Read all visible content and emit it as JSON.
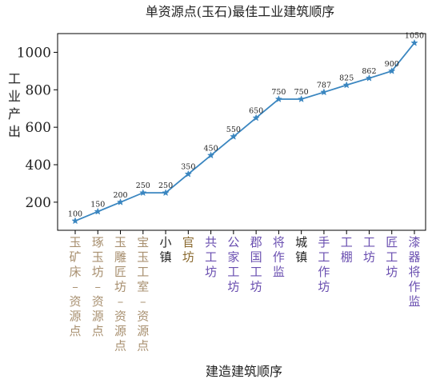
{
  "chart_data": {
    "type": "line",
    "title": "单资源点(玉石)最佳工业建筑顺序",
    "xlabel": "建造建筑顺序",
    "ylabel": "工业产出",
    "categories": [
      "玉矿床-资源点",
      "琢玉坊-资源点",
      "玉雕匠坊-资源点",
      "宝玉工室-资源点",
      "小镇",
      "官坊",
      "共工坊",
      "公家工坊",
      "郡国工坊",
      "将作监",
      "城镇",
      "手工作坊",
      "工棚",
      "工坊",
      "匠工坊",
      "漆器将作监"
    ],
    "category_colors": [
      "#a89070",
      "#a89070",
      "#a89070",
      "#a89070",
      "#222222",
      "#8a6a30",
      "#6a4fb0",
      "#6a4fb0",
      "#6a4fb0",
      "#6a4fb0",
      "#222222",
      "#6a4fb0",
      "#6a4fb0",
      "#6a4fb0",
      "#6a4fb0",
      "#6a4fb0"
    ],
    "series": [
      {
        "values": [
          100,
          150,
          200,
          250,
          250,
          350,
          450,
          550,
          650,
          750,
          750,
          787,
          825,
          862,
          900,
          1050
        ]
      }
    ],
    "data_labels": [
      "100",
      "150",
      "200",
      "250",
      "250",
      "350",
      "450",
      "550",
      "650",
      "750",
      "750",
      "787",
      "825",
      "862",
      "900",
      "1050"
    ],
    "yticks": [
      200,
      400,
      600,
      800,
      1000
    ],
    "ylim": [
      50,
      1100
    ],
    "line_color": "#3a86c0",
    "marker": "star",
    "grid": false
  }
}
